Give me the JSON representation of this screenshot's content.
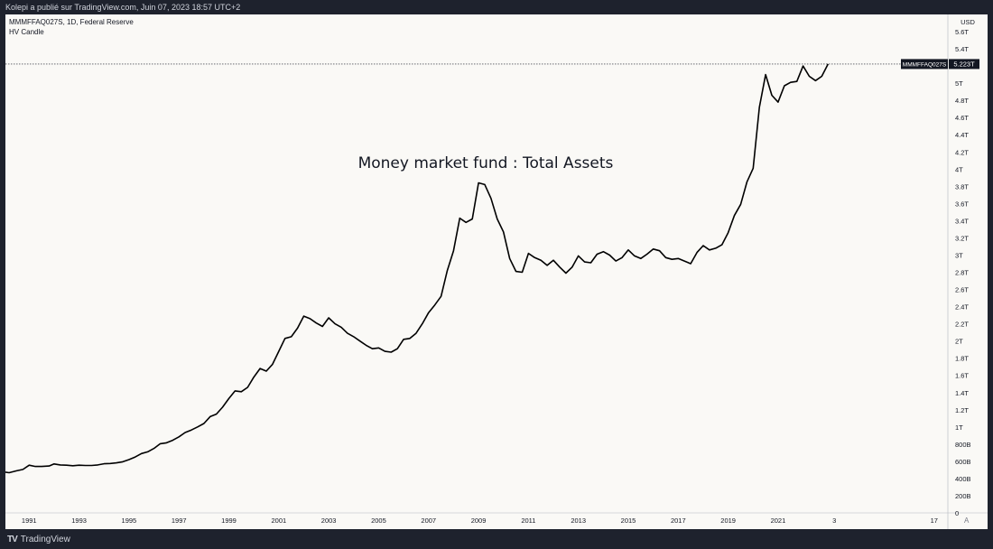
{
  "header": {
    "publish_line": "Kolepi a publié sur TradingView.com, Juin 07, 2023 18:57 UTC+2"
  },
  "legend": {
    "symbol_line": "MMMFFAQ027S, 1D, Federal Reserve",
    "indicator": "HV Candle"
  },
  "price_badge": {
    "symbol": "MMMFFAQ027S",
    "value": "5.223T"
  },
  "footer": {
    "brand": "TradingView",
    "scale_button": "A"
  },
  "chart_data": {
    "type": "line",
    "title": "Money market fund : Total Assets",
    "currency": "USD",
    "ylim": [
      0,
      5800
    ],
    "y_unit": "billions USD",
    "y_ticks": [
      {
        "v": 0,
        "label": "0"
      },
      {
        "v": 200,
        "label": "200B"
      },
      {
        "v": 400,
        "label": "400B"
      },
      {
        "v": 600,
        "label": "600B"
      },
      {
        "v": 800,
        "label": "800B"
      },
      {
        "v": 1000,
        "label": "1T"
      },
      {
        "v": 1200,
        "label": "1.2T"
      },
      {
        "v": 1400,
        "label": "1.4T"
      },
      {
        "v": 1600,
        "label": "1.6T"
      },
      {
        "v": 1800,
        "label": "1.8T"
      },
      {
        "v": 2000,
        "label": "2T"
      },
      {
        "v": 2200,
        "label": "2.2T"
      },
      {
        "v": 2400,
        "label": "2.4T"
      },
      {
        "v": 2600,
        "label": "2.6T"
      },
      {
        "v": 2800,
        "label": "2.8T"
      },
      {
        "v": 3000,
        "label": "3T"
      },
      {
        "v": 3200,
        "label": "3.2T"
      },
      {
        "v": 3400,
        "label": "3.4T"
      },
      {
        "v": 3600,
        "label": "3.6T"
      },
      {
        "v": 3800,
        "label": "3.8T"
      },
      {
        "v": 4000,
        "label": "4T"
      },
      {
        "v": 4200,
        "label": "4.2T"
      },
      {
        "v": 4400,
        "label": "4.4T"
      },
      {
        "v": 4600,
        "label": "4.6T"
      },
      {
        "v": 4800,
        "label": "4.8T"
      },
      {
        "v": 5000,
        "label": "5T"
      },
      {
        "v": 5400,
        "label": "5.4T"
      },
      {
        "v": 5600,
        "label": "5.6T"
      }
    ],
    "x_ticks": [
      {
        "t": 1991,
        "label": "1991"
      },
      {
        "t": 1993,
        "label": "1993"
      },
      {
        "t": 1995,
        "label": "1995"
      },
      {
        "t": 1997,
        "label": "1997"
      },
      {
        "t": 1999,
        "label": "1999"
      },
      {
        "t": 2001,
        "label": "2001"
      },
      {
        "t": 2003,
        "label": "2003"
      },
      {
        "t": 2005,
        "label": "2005"
      },
      {
        "t": 2007,
        "label": "2007"
      },
      {
        "t": 2009,
        "label": "2009"
      },
      {
        "t": 2011,
        "label": "2011"
      },
      {
        "t": 2013,
        "label": "2013"
      },
      {
        "t": 2015,
        "label": "2015"
      },
      {
        "t": 2017,
        "label": "2017"
      },
      {
        "t": 2019,
        "label": "2019"
      },
      {
        "t": 2021,
        "label": "2021"
      },
      {
        "t": 2023.25,
        "label": "3"
      },
      {
        "t": 2027.25,
        "label": "17"
      }
    ],
    "xlim": [
      1990.05,
      2027.8
    ],
    "last_value": 5223,
    "series": [
      {
        "values": [
          [
            1990.0,
            475
          ],
          [
            1990.2,
            468
          ],
          [
            1990.5,
            490
          ],
          [
            1990.75,
            505
          ],
          [
            1991.0,
            555
          ],
          [
            1991.25,
            540
          ],
          [
            1991.5,
            540
          ],
          [
            1991.8,
            545
          ],
          [
            1992.0,
            570
          ],
          [
            1992.25,
            558
          ],
          [
            1992.5,
            555
          ],
          [
            1992.75,
            548
          ],
          [
            1993.0,
            555
          ],
          [
            1993.25,
            552
          ],
          [
            1993.5,
            552
          ],
          [
            1993.75,
            558
          ],
          [
            1994.0,
            572
          ],
          [
            1994.25,
            575
          ],
          [
            1994.5,
            582
          ],
          [
            1994.75,
            595
          ],
          [
            1995.0,
            620
          ],
          [
            1995.25,
            650
          ],
          [
            1995.5,
            690
          ],
          [
            1995.75,
            710
          ],
          [
            1996.0,
            750
          ],
          [
            1996.25,
            805
          ],
          [
            1996.5,
            815
          ],
          [
            1996.75,
            845
          ],
          [
            1997.0,
            885
          ],
          [
            1997.25,
            935
          ],
          [
            1997.5,
            965
          ],
          [
            1997.75,
            1000
          ],
          [
            1998.0,
            1040
          ],
          [
            1998.25,
            1120
          ],
          [
            1998.5,
            1150
          ],
          [
            1998.75,
            1230
          ],
          [
            1999.0,
            1330
          ],
          [
            1999.25,
            1420
          ],
          [
            1999.5,
            1410
          ],
          [
            1999.75,
            1460
          ],
          [
            2000.0,
            1580
          ],
          [
            2000.25,
            1680
          ],
          [
            2000.5,
            1650
          ],
          [
            2000.75,
            1730
          ],
          [
            2001.0,
            1880
          ],
          [
            2001.25,
            2030
          ],
          [
            2001.5,
            2050
          ],
          [
            2001.75,
            2150
          ],
          [
            2002.0,
            2290
          ],
          [
            2002.25,
            2260
          ],
          [
            2002.5,
            2210
          ],
          [
            2002.75,
            2170
          ],
          [
            2003.0,
            2270
          ],
          [
            2003.25,
            2200
          ],
          [
            2003.5,
            2160
          ],
          [
            2003.75,
            2090
          ],
          [
            2004.0,
            2050
          ],
          [
            2004.25,
            2000
          ],
          [
            2004.5,
            1950
          ],
          [
            2004.75,
            1910
          ],
          [
            2005.0,
            1920
          ],
          [
            2005.25,
            1880
          ],
          [
            2005.5,
            1870
          ],
          [
            2005.75,
            1910
          ],
          [
            2006.0,
            2020
          ],
          [
            2006.25,
            2030
          ],
          [
            2006.5,
            2090
          ],
          [
            2006.75,
            2200
          ],
          [
            2007.0,
            2330
          ],
          [
            2007.25,
            2420
          ],
          [
            2007.5,
            2520
          ],
          [
            2007.75,
            2820
          ],
          [
            2008.0,
            3050
          ],
          [
            2008.25,
            3430
          ],
          [
            2008.5,
            3380
          ],
          [
            2008.75,
            3420
          ],
          [
            2009.0,
            3840
          ],
          [
            2009.25,
            3820
          ],
          [
            2009.5,
            3660
          ],
          [
            2009.75,
            3420
          ],
          [
            2010.0,
            3270
          ],
          [
            2010.25,
            2960
          ],
          [
            2010.5,
            2810
          ],
          [
            2010.75,
            2800
          ],
          [
            2011.0,
            3020
          ],
          [
            2011.25,
            2970
          ],
          [
            2011.5,
            2940
          ],
          [
            2011.75,
            2880
          ],
          [
            2012.0,
            2940
          ],
          [
            2012.25,
            2860
          ],
          [
            2012.5,
            2790
          ],
          [
            2012.75,
            2860
          ],
          [
            2013.0,
            2990
          ],
          [
            2013.25,
            2920
          ],
          [
            2013.5,
            2910
          ],
          [
            2013.75,
            3010
          ],
          [
            2014.0,
            3040
          ],
          [
            2014.25,
            3000
          ],
          [
            2014.5,
            2930
          ],
          [
            2014.75,
            2970
          ],
          [
            2015.0,
            3060
          ],
          [
            2015.25,
            2990
          ],
          [
            2015.5,
            2960
          ],
          [
            2015.75,
            3010
          ],
          [
            2016.0,
            3070
          ],
          [
            2016.25,
            3050
          ],
          [
            2016.5,
            2970
          ],
          [
            2016.75,
            2950
          ],
          [
            2017.0,
            2960
          ],
          [
            2017.25,
            2930
          ],
          [
            2017.5,
            2900
          ],
          [
            2017.75,
            3030
          ],
          [
            2018.0,
            3110
          ],
          [
            2018.25,
            3060
          ],
          [
            2018.5,
            3080
          ],
          [
            2018.75,
            3120
          ],
          [
            2019.0,
            3260
          ],
          [
            2019.25,
            3460
          ],
          [
            2019.5,
            3590
          ],
          [
            2019.75,
            3850
          ],
          [
            2020.0,
            4010
          ],
          [
            2020.25,
            4720
          ],
          [
            2020.5,
            5100
          ],
          [
            2020.75,
            4860
          ],
          [
            2021.0,
            4780
          ],
          [
            2021.25,
            4970
          ],
          [
            2021.5,
            5010
          ],
          [
            2021.75,
            5020
          ],
          [
            2022.0,
            5200
          ],
          [
            2022.25,
            5080
          ],
          [
            2022.5,
            5030
          ],
          [
            2022.75,
            5080
          ],
          [
            2023.0,
            5223
          ]
        ]
      }
    ]
  }
}
